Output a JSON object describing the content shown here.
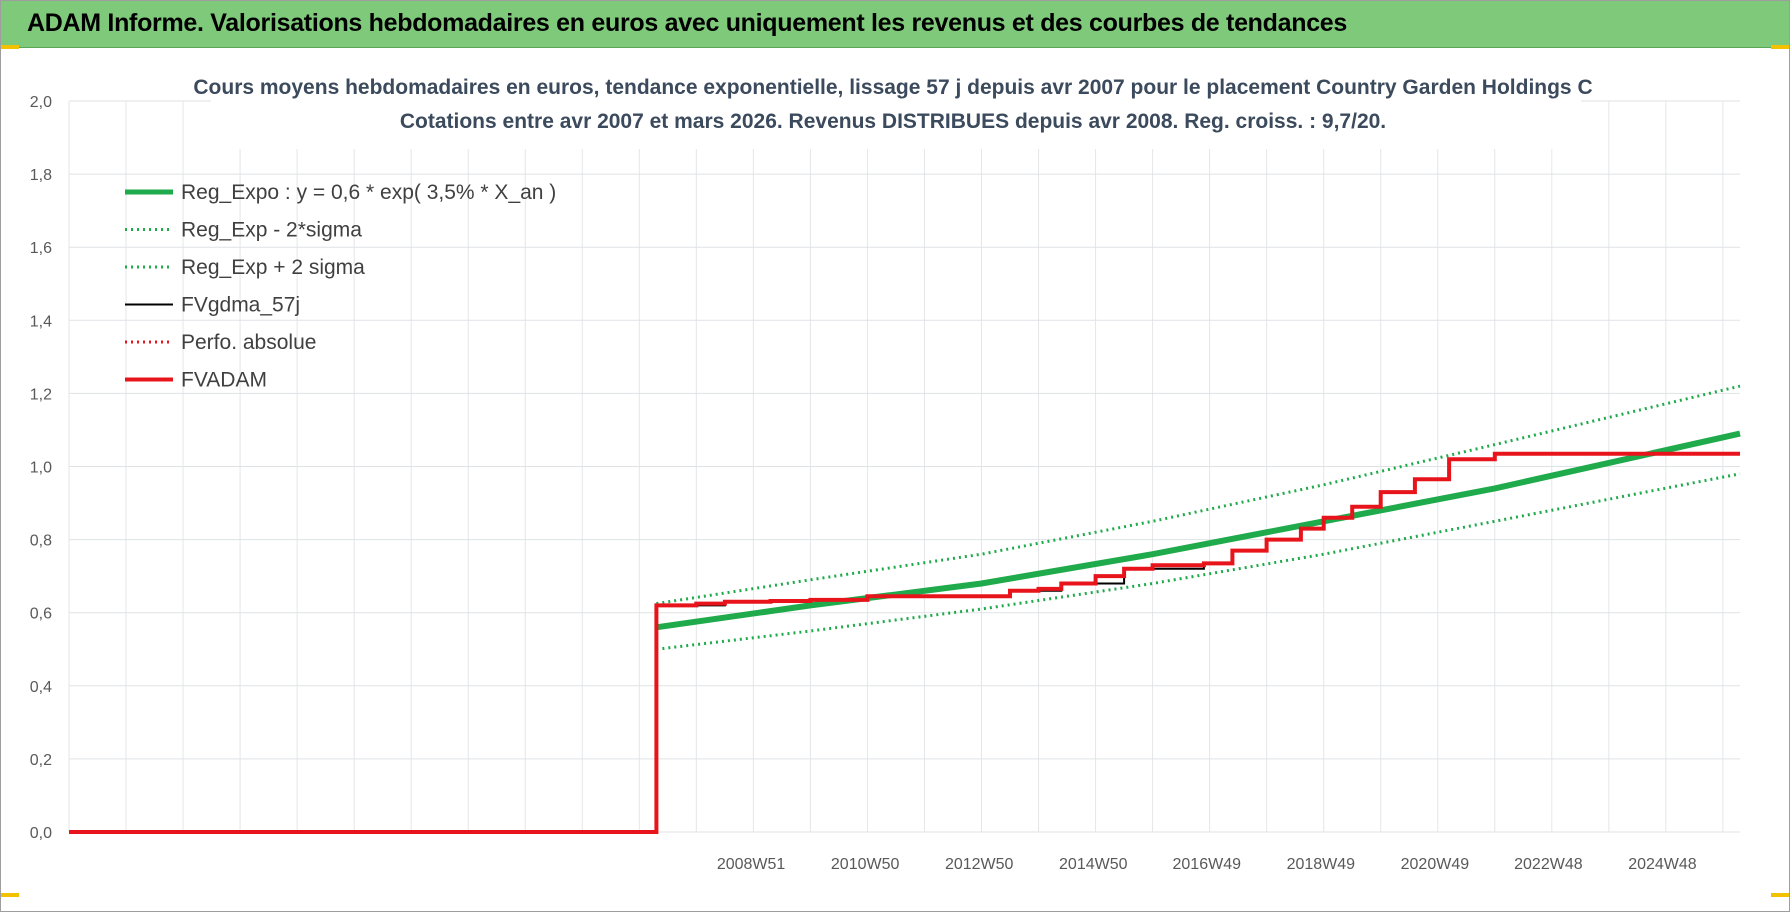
{
  "header": {
    "title": "ADAM Informe. Valorisations hebdomadaires en euros avec uniquement les revenus et des courbes de tendances"
  },
  "chart_data": {
    "type": "line",
    "title": "Cours moyens hebdomadaires en euros, tendance exponentielle, lissage 57 j depuis avr 2007 pour le placement Country Garden Holdings C",
    "subtitle": "Cotations entre avr 2007 et mars 2026.  Revenus DISTRIBUES depuis avr 2008. Reg. croiss. : 9,7/20.",
    "ylim": [
      0,
      2
    ],
    "y_ticks": [
      "0,0",
      "0,2",
      "0,4",
      "0,6",
      "0,8",
      "1,0",
      "1,2",
      "1,4",
      "1,6",
      "1,8",
      "2,0"
    ],
    "x_range": [
      1997.0,
      2026.3
    ],
    "x_tick_labels": [
      {
        "x": 2008.96,
        "label": "2008W51"
      },
      {
        "x": 2010.96,
        "label": "2010W50"
      },
      {
        "x": 2012.96,
        "label": "2012W50"
      },
      {
        "x": 2014.96,
        "label": "2014W50"
      },
      {
        "x": 2016.95,
        "label": "2016W49"
      },
      {
        "x": 2018.95,
        "label": "2018W49"
      },
      {
        "x": 2020.95,
        "label": "2020W49"
      },
      {
        "x": 2022.94,
        "label": "2022W48"
      },
      {
        "x": 2024.94,
        "label": "2024W48"
      }
    ],
    "grid": true,
    "legend_position": "top-left",
    "series": [
      {
        "key": "reg",
        "name": "Reg_Expo : y = 0,6 * exp( 3,5% *  X_an )",
        "color": "#1faa4b",
        "style": "thick",
        "x": [
          2007.3,
          2010.0,
          2013.0,
          2016.0,
          2019.0,
          2022.0,
          2026.3
        ],
        "y": [
          0.56,
          0.62,
          0.68,
          0.76,
          0.85,
          0.94,
          1.09
        ]
      },
      {
        "key": "lo",
        "name": "Reg_Exp - 2*sigma",
        "color": "#1faa4b",
        "style": "dotted",
        "x": [
          2007.3,
          2010.0,
          2013.0,
          2016.0,
          2019.0,
          2022.0,
          2026.3
        ],
        "y": [
          0.5,
          0.55,
          0.61,
          0.68,
          0.76,
          0.85,
          0.98
        ]
      },
      {
        "key": "hi",
        "name": "Reg_Exp + 2 sigma",
        "color": "#1faa4b",
        "style": "dotted",
        "x": [
          2007.3,
          2010.0,
          2013.0,
          2016.0,
          2019.0,
          2022.0,
          2026.3
        ],
        "y": [
          0.625,
          0.69,
          0.76,
          0.85,
          0.95,
          1.06,
          1.22
        ]
      },
      {
        "key": "fvg",
        "name": "FVgdma_57j",
        "color": "#000000",
        "style": "thin",
        "x": [
          2007.3,
          2008.5,
          2010.0,
          2011.0,
          2013.5,
          2014.4,
          2015.5,
          2016.9,
          2017.4,
          2018.0,
          2018.6,
          2019.0,
          2019.5,
          2020.0,
          2020.6,
          2021.2,
          2022.0,
          2026.3
        ],
        "y": [
          0.62,
          0.63,
          0.635,
          0.645,
          0.66,
          0.68,
          0.72,
          0.735,
          0.77,
          0.8,
          0.83,
          0.86,
          0.89,
          0.93,
          0.965,
          1.02,
          1.035,
          1.035
        ]
      },
      {
        "key": "perf",
        "name": "Perfo. absolue",
        "color": "#e8141b",
        "style": "dotted",
        "x": [],
        "y": []
      },
      {
        "key": "fva",
        "name": "FVADAM",
        "color": "#e8141b",
        "style": "thickstep",
        "x": [
          1997.0,
          2007.3,
          2007.3,
          2008.0,
          2008.5,
          2009.3,
          2010.0,
          2011.0,
          2012.0,
          2013.0,
          2013.5,
          2014.0,
          2014.4,
          2015.0,
          2015.5,
          2016.0,
          2016.9,
          2017.4,
          2018.0,
          2018.6,
          2019.0,
          2019.5,
          2020.0,
          2020.6,
          2021.2,
          2022.0,
          2026.3
        ],
        "y": [
          0.0,
          0.0,
          0.62,
          0.625,
          0.63,
          0.632,
          0.635,
          0.645,
          0.645,
          0.645,
          0.66,
          0.665,
          0.68,
          0.7,
          0.72,
          0.73,
          0.735,
          0.77,
          0.8,
          0.83,
          0.86,
          0.89,
          0.93,
          0.965,
          1.02,
          1.035,
          1.035
        ]
      }
    ]
  }
}
